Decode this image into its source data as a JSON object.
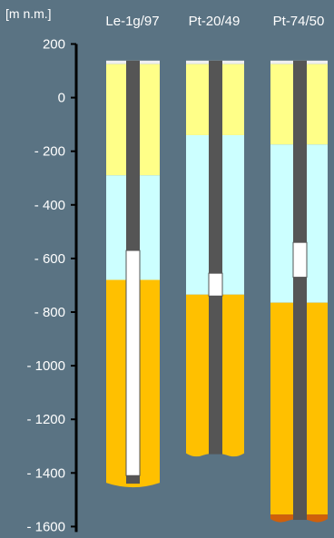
{
  "axis": {
    "unit_label": "[m n.m.]",
    "ticks": [
      {
        "value": 200,
        "label": "200"
      },
      {
        "value": 0,
        "label": "0"
      },
      {
        "value": -200,
        "label": "- 200"
      },
      {
        "value": -400,
        "label": "- 400"
      },
      {
        "value": -600,
        "label": "- 600"
      },
      {
        "value": -800,
        "label": "- 800"
      },
      {
        "value": -1000,
        "label": "- 1000"
      },
      {
        "value": -1200,
        "label": "- 1200"
      },
      {
        "value": -1400,
        "label": "- 1400"
      },
      {
        "value": -1600,
        "label": "- 1600"
      }
    ],
    "range": [
      -1600,
      200
    ]
  },
  "colors": {
    "background": "#5a7383",
    "cap": "#f0f0f0",
    "layer_yellow": "#ffff88",
    "layer_lightblue": "#ccffff",
    "layer_orange": "#ffc000",
    "layer_brown": "#d0600a",
    "pipe": "#555555",
    "open_section": "#ffffff",
    "label": "#ffffff"
  },
  "boreholes": [
    {
      "name": "Le-1g/97",
      "top": 138,
      "layers": [
        {
          "kind": "cap",
          "from": 138,
          "to": 125,
          "color": "#f0f0f0"
        },
        {
          "kind": "yellow",
          "from": 125,
          "to": -290,
          "color": "#ffff88"
        },
        {
          "kind": "lightblue",
          "from": -290,
          "to": -680,
          "color": "#ccffff"
        },
        {
          "kind": "orange",
          "from": -680,
          "to": -1450,
          "color": "#ffc000"
        }
      ],
      "bottom_curve": "convex",
      "pipe_sections": [
        {
          "kind": "casing",
          "from": 138,
          "to": -570,
          "color": "#555555"
        },
        {
          "kind": "open",
          "from": -570,
          "to": -1410,
          "color": "#ffffff"
        },
        {
          "kind": "casing",
          "from": -1410,
          "to": -1440,
          "color": "#555555"
        }
      ]
    },
    {
      "name": "Pt-20/49",
      "top": 138,
      "layers": [
        {
          "kind": "cap",
          "from": 138,
          "to": 125,
          "color": "#f0f0f0"
        },
        {
          "kind": "yellow",
          "from": 125,
          "to": -140,
          "color": "#ffff88"
        },
        {
          "kind": "lightblue",
          "from": -140,
          "to": -735,
          "color": "#ccffff"
        },
        {
          "kind": "orange",
          "from": -735,
          "to": -1340,
          "color": "#ffc000"
        }
      ],
      "bottom_curve": "wavy",
      "pipe_sections": [
        {
          "kind": "casing",
          "from": 138,
          "to": -655,
          "color": "#555555"
        },
        {
          "kind": "open",
          "from": -655,
          "to": -740,
          "color": "#ffffff"
        },
        {
          "kind": "casing",
          "from": -740,
          "to": -1330,
          "color": "#555555"
        }
      ]
    },
    {
      "name": "Pt-74/50",
      "top": 138,
      "layers": [
        {
          "kind": "cap",
          "from": 138,
          "to": 125,
          "color": "#f0f0f0"
        },
        {
          "kind": "yellow",
          "from": 125,
          "to": -175,
          "color": "#ffff88"
        },
        {
          "kind": "lightblue",
          "from": -175,
          "to": -765,
          "color": "#ccffff"
        },
        {
          "kind": "orange",
          "from": -765,
          "to": -1555,
          "color": "#ffc000"
        },
        {
          "kind": "brown",
          "from": -1555,
          "to": -1585,
          "color": "#d0600a"
        }
      ],
      "bottom_curve": "wavy",
      "pipe_sections": [
        {
          "kind": "casing",
          "from": 138,
          "to": -540,
          "color": "#555555"
        },
        {
          "kind": "open",
          "from": -540,
          "to": -670,
          "color": "#ffffff"
        },
        {
          "kind": "casing",
          "from": -670,
          "to": -1575,
          "color": "#555555"
        }
      ]
    }
  ]
}
